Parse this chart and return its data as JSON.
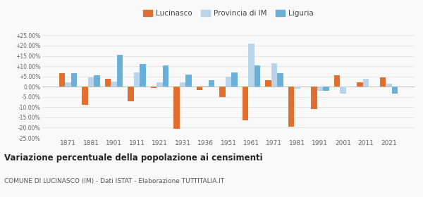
{
  "years": [
    1871,
    1881,
    1901,
    1911,
    1921,
    1931,
    1936,
    1951,
    1961,
    1971,
    1981,
    1991,
    2001,
    2011,
    2021
  ],
  "lucinasco": [
    6.5,
    -9.0,
    4.0,
    -7.0,
    -0.5,
    -20.5,
    -1.5,
    -5.0,
    -16.5,
    3.0,
    -19.5,
    -11.0,
    5.5,
    2.0,
    4.5
  ],
  "provincia_im": [
    2.0,
    4.5,
    2.5,
    7.0,
    2.0,
    2.0,
    0.5,
    5.0,
    21.0,
    11.5,
    -1.0,
    -2.0,
    -3.5,
    4.0,
    1.5
  ],
  "liguria": [
    6.5,
    5.5,
    15.5,
    11.0,
    10.5,
    6.0,
    3.0,
    7.0,
    10.5,
    6.5,
    0,
    -2.0,
    0,
    0,
    -3.5
  ],
  "liguria_mask": [
    1,
    1,
    1,
    1,
    1,
    1,
    1,
    1,
    1,
    1,
    0,
    1,
    0,
    0,
    1
  ],
  "color_lucinasco": "#e07030",
  "color_provincia": "#b8d4ea",
  "color_liguria": "#6ab0d8",
  "title": "Variazione percentuale della popolazione ai censimenti",
  "subtitle": "COMUNE DI LUCINASCO (IM) - Dati ISTAT - Elaborazione TUTTITALIA.IT",
  "legend_labels": [
    "Lucinasco",
    "Provincia di IM",
    "Liguria"
  ],
  "ylim": [
    -25,
    25
  ],
  "yticks": [
    -25,
    -20,
    -15,
    -10,
    -5,
    0,
    5,
    10,
    15,
    20,
    25
  ],
  "ytick_labels": [
    "-25.00%",
    "-20.00%",
    "-15.00%",
    "-10.00%",
    "-5.00%",
    "0.00%",
    "+5.00%",
    "+10.00%",
    "+15.00%",
    "+20.00%",
    "+25.00%"
  ],
  "background_color": "#f9f9f9",
  "grid_color": "#e0e0e0"
}
